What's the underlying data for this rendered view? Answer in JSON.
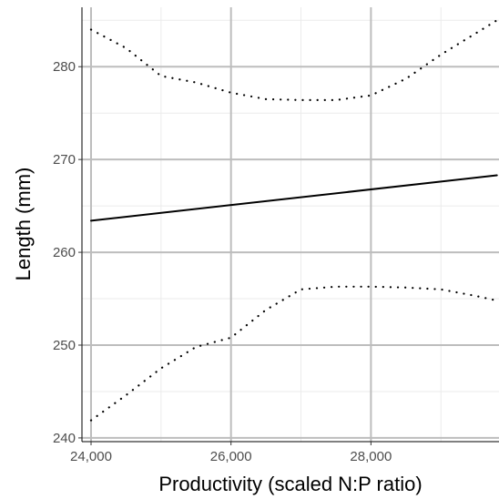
{
  "chart_data": {
    "type": "line",
    "title": "",
    "xlabel": "Productivity (scaled N:P ratio)",
    "ylabel": "Length (mm)",
    "xlim": [
      23870,
      29830
    ],
    "ylim": [
      239.6,
      286.4
    ],
    "x_ticks": [
      {
        "value": 24000,
        "label": "24,000"
      },
      {
        "value": 26000,
        "label": "26,000"
      },
      {
        "value": 28000,
        "label": "28,000"
      }
    ],
    "y_ticks": [
      {
        "value": 240,
        "label": "240"
      },
      {
        "value": 250,
        "label": "250"
      },
      {
        "value": 260,
        "label": "260"
      },
      {
        "value": 270,
        "label": "270"
      },
      {
        "value": 280,
        "label": "280"
      }
    ],
    "grid": true,
    "series": [
      {
        "style": "solid",
        "x": [
          24000,
          29800
        ],
        "y": [
          263.4,
          268.3
        ]
      },
      {
        "style": "dotted",
        "x": [
          24000,
          24500,
          25000,
          25500,
          26000,
          26500,
          27000,
          27500,
          28000,
          28500,
          29000,
          29500,
          29800
        ],
        "y": [
          284.0,
          282.0,
          279.0,
          278.3,
          277.2,
          276.5,
          276.4,
          276.4,
          276.9,
          278.7,
          281.3,
          283.6,
          285.0
        ]
      },
      {
        "style": "dotted",
        "x": [
          24000,
          24500,
          25000,
          25500,
          26000,
          26500,
          27000,
          27500,
          28000,
          28500,
          29000,
          29500,
          29800
        ],
        "y": [
          241.9,
          244.6,
          247.5,
          249.8,
          250.8,
          253.8,
          256.0,
          256.3,
          256.3,
          256.2,
          256.0,
          255.3,
          254.8
        ]
      }
    ]
  }
}
